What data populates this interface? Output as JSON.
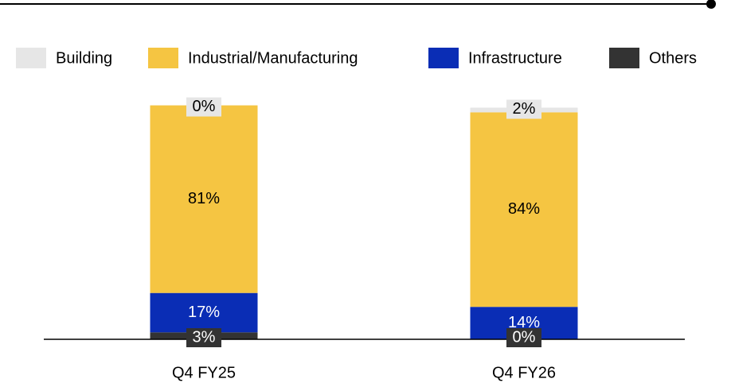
{
  "chart_data": {
    "type": "stacked_bar",
    "categories": [
      "Q4 FY25",
      "Q4 FY26"
    ],
    "series": [
      {
        "name": "Others",
        "color": "#333333",
        "values": [
          3,
          0
        ],
        "value_labels": [
          "3%",
          "0%"
        ]
      },
      {
        "name": "Infrastructure",
        "color": "#0a2db5",
        "values": [
          17,
          14
        ],
        "value_labels": [
          "17%",
          "14%"
        ]
      },
      {
        "name": "Industrial/Manufacturing",
        "color": "#f5c542",
        "values": [
          81,
          84
        ],
        "value_labels": [
          "81%",
          "84%"
        ]
      },
      {
        "name": "Building",
        "color": "#e6e6e6",
        "values": [
          0,
          2
        ],
        "value_labels": [
          "0%",
          "2%"
        ]
      }
    ],
    "legend_order": [
      "Building",
      "Industrial/Manufacturing",
      "Infrastructure",
      "Others"
    ]
  }
}
